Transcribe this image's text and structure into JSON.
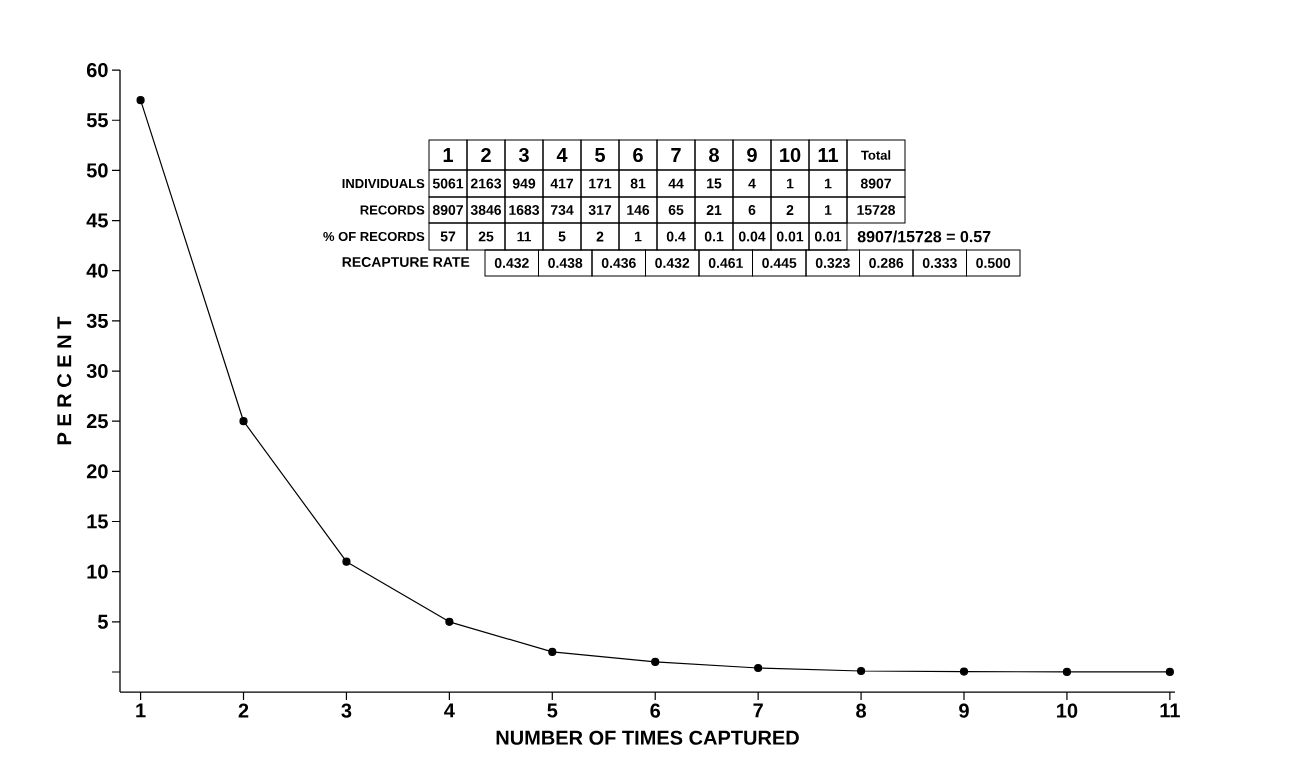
{
  "chart_data": {
    "type": "line",
    "xlabel": "NUMBER  OF  TIMES  CAPTURED",
    "ylabel": "P E R C E N T",
    "x": [
      1,
      2,
      3,
      4,
      5,
      6,
      7,
      8,
      9,
      10,
      11
    ],
    "values": [
      57,
      25,
      11,
      5,
      2,
      1,
      0.4,
      0.1,
      0.04,
      0.01,
      0.01
    ],
    "color": "#000000",
    "marker": "circle",
    "line_style": "solid",
    "xlim": [
      0.8,
      11.05
    ],
    "ylim": [
      -2,
      60
    ],
    "xticks": [
      1,
      2,
      3,
      4,
      5,
      6,
      7,
      8,
      9,
      10,
      11
    ],
    "yticks": [
      {
        "value": 0,
        "label": null
      },
      5,
      10,
      15,
      20,
      25,
      30,
      35,
      40,
      45,
      50,
      55,
      60
    ],
    "annotations": [
      "1",
      "2",
      "3",
      "4",
      "5",
      "6",
      "7",
      "8",
      "9",
      "10",
      "11",
      "Total",
      "INDIVIDUALS",
      "RECORDS",
      "% OF RECORDS",
      "RECAPTURE  RATE",
      "5061",
      "2163",
      "949",
      "417",
      "171",
      "81",
      "44",
      "15",
      "4",
      "1",
      "1",
      "8907",
      "8907",
      "3846",
      "1683",
      "734",
      "317",
      "146",
      "65",
      "21",
      "6",
      "2",
      "1",
      "15728",
      "57",
      "25",
      "11",
      "5",
      "2",
      "1",
      "0.4",
      "0.1",
      "0.04",
      "0.01",
      "0.01",
      "8907/15728 = 0.57",
      "0.432",
      "0.438",
      "0.436",
      "0.432",
      "0.461",
      "0.445",
      "0.323",
      "0.286",
      "0.333",
      "0.500"
    ]
  }
}
